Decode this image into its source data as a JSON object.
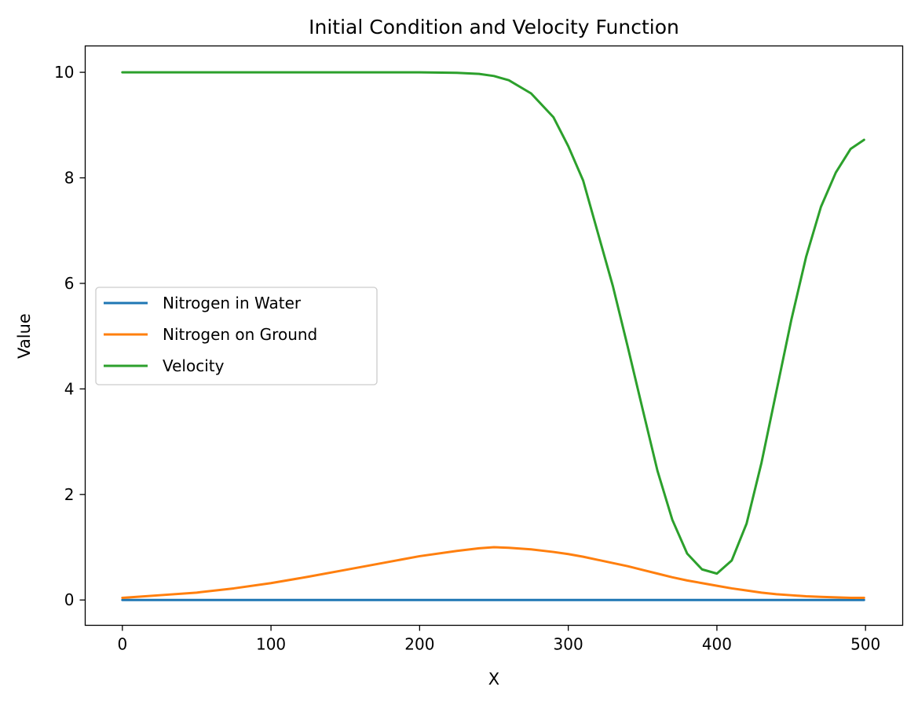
{
  "chart_data": {
    "type": "line",
    "title": "Initial Condition and Velocity Function",
    "xlabel": "X",
    "ylabel": "Value",
    "xlim": [
      -25,
      525
    ],
    "ylim": [
      -0.48,
      10.5
    ],
    "xticks": [
      0,
      100,
      200,
      300,
      400,
      500
    ],
    "yticks": [
      0,
      2,
      4,
      6,
      8,
      10
    ],
    "grid": false,
    "legend_position": "center-left",
    "x": [
      0,
      25,
      50,
      75,
      100,
      125,
      150,
      175,
      200,
      225,
      240,
      250,
      260,
      275,
      290,
      300,
      310,
      320,
      330,
      340,
      350,
      360,
      370,
      380,
      390,
      400,
      410,
      420,
      430,
      440,
      450,
      460,
      470,
      480,
      490,
      499
    ],
    "series": [
      {
        "name": "Nitrogen in Water",
        "color": "#1f77b4",
        "values": [
          0,
          0,
          0,
          0,
          0,
          0,
          0,
          0,
          0,
          0,
          0,
          0,
          0,
          0,
          0,
          0,
          0,
          0,
          0,
          0,
          0,
          0,
          0,
          0,
          0,
          0,
          0,
          0,
          0,
          0,
          0,
          0,
          0,
          0,
          0,
          0
        ]
      },
      {
        "name": "Nitrogen on Ground",
        "color": "#ff7f0e",
        "values": [
          0.04,
          0.09,
          0.14,
          0.22,
          0.32,
          0.44,
          0.57,
          0.7,
          0.83,
          0.93,
          0.98,
          1.0,
          0.99,
          0.96,
          0.91,
          0.87,
          0.82,
          0.76,
          0.7,
          0.64,
          0.57,
          0.5,
          0.43,
          0.37,
          0.32,
          0.27,
          0.22,
          0.18,
          0.14,
          0.11,
          0.09,
          0.07,
          0.06,
          0.05,
          0.04,
          0.04
        ]
      },
      {
        "name": "Velocity",
        "color": "#2ca02c",
        "values": [
          10.0,
          10.0,
          10.0,
          10.0,
          10.0,
          10.0,
          10.0,
          10.0,
          10.0,
          9.99,
          9.97,
          9.93,
          9.85,
          9.6,
          9.15,
          8.6,
          7.95,
          6.95,
          5.95,
          4.8,
          3.62,
          2.45,
          1.52,
          0.88,
          0.58,
          0.5,
          0.75,
          1.45,
          2.6,
          3.95,
          5.3,
          6.5,
          7.45,
          8.1,
          8.55,
          8.72
        ]
      }
    ]
  }
}
